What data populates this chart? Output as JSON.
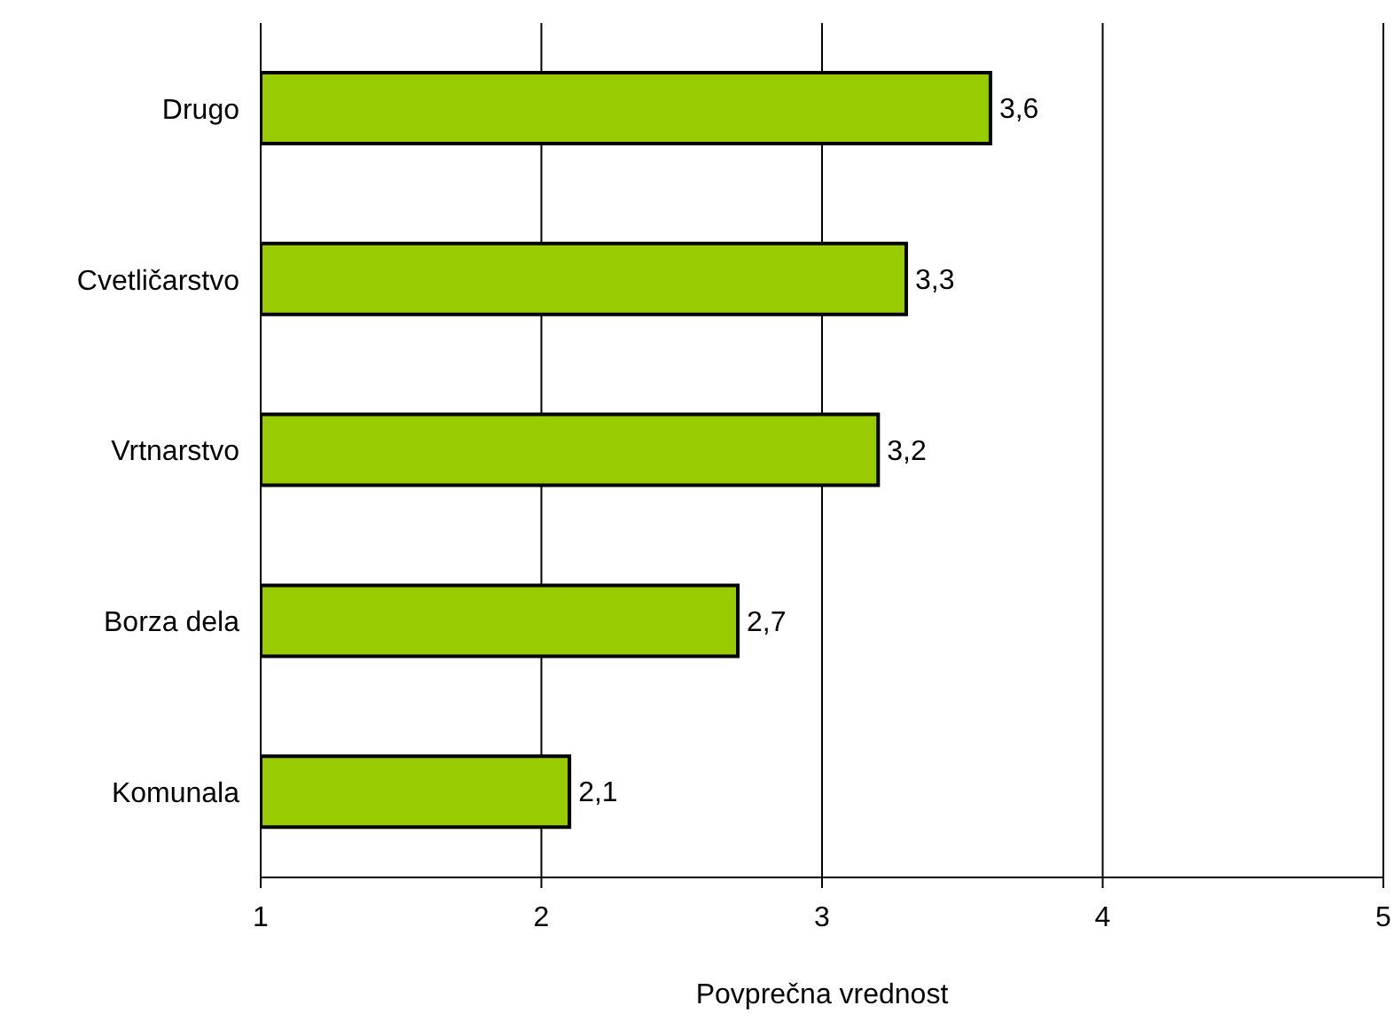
{
  "chart_data": {
    "type": "bar",
    "orientation": "horizontal",
    "categories": [
      "Drugo",
      "Cvetličarstvo",
      "Vrtnarstvo",
      "Borza dela",
      "Komunala"
    ],
    "values": [
      3.6,
      3.3,
      3.2,
      2.7,
      2.1
    ],
    "value_labels": [
      "3,6",
      "3,3",
      "3,2",
      "2,7",
      "2,1"
    ],
    "color": "#99cc00",
    "xlim": [
      1,
      5
    ],
    "xticks": [
      1,
      2,
      3,
      4,
      5
    ],
    "xlabel": "Povprečna vrednost",
    "grid": "x"
  }
}
